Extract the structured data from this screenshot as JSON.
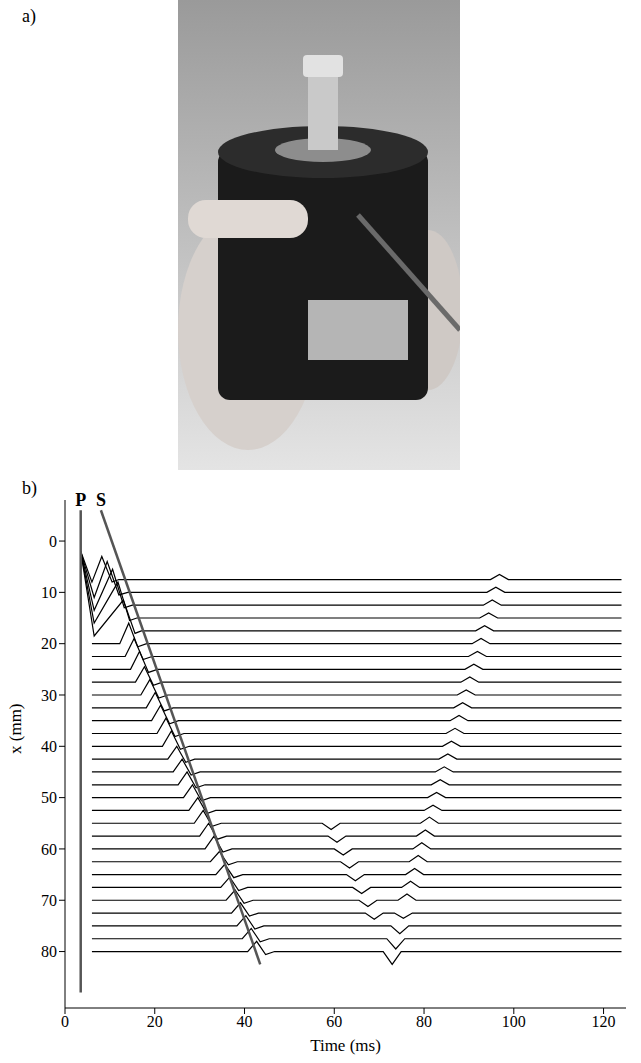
{
  "panel_labels": [
    "a)",
    "b)"
  ],
  "chart_data": {
    "type": "line",
    "x_label": "Time (ms)",
    "y_label": "x (mm)",
    "xlim": [
      0,
      125
    ],
    "xticks": [
      0,
      20,
      40,
      60,
      80,
      100,
      120
    ],
    "ylim": [
      -8,
      91
    ],
    "yticks": [
      0,
      10,
      20,
      30,
      40,
      50,
      60,
      70,
      80
    ],
    "y_reversed": true,
    "grid": false,
    "color": "#000000",
    "traces": [
      {
        "offset": 7.5,
        "x": [
          3.5,
          6,
          8.2,
          10.5,
          12,
          94.8,
          96.8,
          98.8,
          124
        ],
        "values": [
          -5.5,
          0.5,
          -4.5,
          0.5,
          0,
          0,
          -1,
          0,
          0
        ]
      },
      {
        "offset": 10,
        "x": [
          3.5,
          6.5,
          9.4,
          12,
          14,
          94,
          96,
          98,
          124
        ],
        "values": [
          -8,
          1,
          -6,
          0.5,
          0,
          0,
          -1,
          0,
          0
        ]
      },
      {
        "offset": 12.5,
        "x": [
          3.5,
          6.5,
          10.6,
          13.2,
          15,
          93.2,
          95.2,
          97.2,
          124
        ],
        "values": [
          -10.5,
          1,
          -7,
          0.5,
          0,
          0,
          -1,
          0,
          0
        ]
      },
      {
        "offset": 15,
        "x": [
          3.5,
          6.5,
          11.8,
          14.4,
          16,
          92.4,
          94.4,
          96.4,
          124
        ],
        "values": [
          -13,
          1,
          -7,
          0.5,
          0,
          0,
          -1,
          0,
          0
        ]
      },
      {
        "offset": 17.5,
        "x": [
          3.5,
          6.5,
          13,
          15.6,
          17,
          91.5,
          93.5,
          95.5,
          124
        ],
        "values": [
          -15.5,
          1,
          -6,
          0.5,
          0,
          0,
          -1,
          0,
          0
        ]
      },
      {
        "offset": 20,
        "x": [
          6,
          12.2,
          14.2,
          16.2,
          18.2,
          90.7,
          92.7,
          94.7,
          124
        ],
        "values": [
          0,
          0,
          -4,
          0.6,
          0,
          0,
          -1,
          0,
          0
        ]
      },
      {
        "offset": 22.5,
        "x": [
          6,
          13.4,
          15.4,
          17.4,
          19.4,
          89.9,
          91.9,
          93.9,
          124
        ],
        "values": [
          0,
          0,
          -3.5,
          0.6,
          0,
          0,
          -1,
          0,
          0
        ]
      },
      {
        "offset": 25,
        "x": [
          6,
          14.6,
          16.6,
          18.6,
          20.6,
          89.1,
          91.1,
          93.1,
          124
        ],
        "values": [
          0,
          0,
          -3.5,
          0.6,
          0,
          0,
          -1,
          0,
          0
        ]
      },
      {
        "offset": 27.5,
        "x": [
          6,
          15.7,
          17.7,
          19.7,
          21.7,
          88.2,
          90.2,
          92.2,
          124
        ],
        "values": [
          0,
          0,
          -3,
          0.6,
          0,
          0,
          -1,
          0,
          0
        ]
      },
      {
        "offset": 30,
        "x": [
          6,
          16.9,
          18.9,
          20.9,
          22.9,
          87.4,
          89.4,
          91.4,
          124
        ],
        "values": [
          0,
          0,
          -3,
          0.6,
          0,
          0,
          -1,
          0,
          0
        ]
      },
      {
        "offset": 32.5,
        "x": [
          6,
          18.1,
          20.1,
          22.1,
          24.1,
          86.6,
          88.6,
          90.6,
          124
        ],
        "values": [
          0,
          0,
          -3,
          0.6,
          0,
          0,
          -1,
          0,
          0
        ]
      },
      {
        "offset": 35,
        "x": [
          6,
          19.3,
          21.3,
          23.3,
          25.3,
          85.8,
          87.8,
          89.8,
          124
        ],
        "values": [
          0,
          0,
          -3,
          0.6,
          0,
          0,
          -1,
          0,
          0
        ]
      },
      {
        "offset": 37.5,
        "x": [
          6,
          20.5,
          22.5,
          24.5,
          26.5,
          84.9,
          86.9,
          88.9,
          124
        ],
        "values": [
          0,
          0,
          -3,
          0.6,
          0,
          0,
          -1,
          0,
          0
        ]
      },
      {
        "offset": 40,
        "x": [
          6,
          21.7,
          23.7,
          25.7,
          27.7,
          84.1,
          86.1,
          88.1,
          124
        ],
        "values": [
          0,
          0,
          -3,
          0.6,
          0,
          0,
          -1,
          0,
          0
        ]
      },
      {
        "offset": 42.5,
        "x": [
          6,
          22.9,
          24.9,
          26.9,
          28.9,
          83.3,
          85.3,
          87.3,
          124
        ],
        "values": [
          0,
          0,
          -2.5,
          0.6,
          0,
          0,
          -1,
          0,
          0
        ]
      },
      {
        "offset": 45,
        "x": [
          6,
          24.1,
          26.1,
          28.1,
          30.1,
          82.5,
          84.5,
          86.5,
          124
        ],
        "values": [
          0,
          0,
          -2.5,
          0.6,
          0,
          0,
          -1,
          0,
          0
        ]
      },
      {
        "offset": 47.5,
        "x": [
          6,
          25.2,
          27.2,
          29.2,
          31.2,
          81.6,
          83.6,
          85.6,
          124
        ],
        "values": [
          0,
          0,
          -2.5,
          0.6,
          0,
          0,
          -1,
          0,
          0
        ]
      },
      {
        "offset": 50,
        "x": [
          6,
          26.4,
          28.4,
          30.4,
          32.4,
          80.8,
          82.8,
          84.8,
          124
        ],
        "values": [
          0,
          0,
          -2.5,
          0.6,
          0,
          0,
          -1,
          0,
          0
        ]
      },
      {
        "offset": 52.5,
        "x": [
          6,
          27.6,
          29.6,
          31.6,
          33.6,
          80,
          82,
          84,
          124
        ],
        "values": [
          0,
          0,
          -2.5,
          0.6,
          0,
          0,
          -1,
          0,
          0
        ]
      },
      {
        "offset": 55,
        "x": [
          6,
          28.8,
          30.8,
          32.8,
          34.8,
          57.3,
          59.3,
          61.3,
          79.2,
          81.2,
          83.2,
          124
        ],
        "values": [
          0,
          0,
          -2.5,
          0.6,
          0,
          0,
          1.2,
          0,
          0,
          -1.2,
          0,
          0
        ]
      },
      {
        "offset": 57.5,
        "x": [
          6,
          30,
          32,
          34,
          36,
          58.6,
          60.6,
          62.6,
          78.3,
          80.3,
          82.3,
          124
        ],
        "values": [
          0,
          0,
          -2.5,
          0.6,
          0,
          0,
          1.2,
          0,
          0,
          -1.2,
          0,
          0
        ]
      },
      {
        "offset": 60,
        "x": [
          6,
          31.2,
          33.2,
          35.2,
          37.2,
          60,
          62,
          64,
          77.5,
          79.5,
          81.5,
          124
        ],
        "values": [
          0,
          0,
          -2.5,
          0.6,
          0,
          0,
          1.2,
          0,
          0,
          -1.2,
          0,
          0
        ]
      },
      {
        "offset": 62.5,
        "x": [
          6,
          32.4,
          34.4,
          36.4,
          38.4,
          61.4,
          63.4,
          65.4,
          76.7,
          78.7,
          80.7,
          124
        ],
        "values": [
          0,
          0,
          -2,
          0.6,
          0,
          0,
          1.2,
          0,
          0,
          -1.2,
          0,
          0
        ]
      },
      {
        "offset": 65,
        "x": [
          6,
          33.6,
          35.6,
          37.6,
          39.6,
          62.7,
          64.7,
          66.7,
          75.9,
          77.9,
          79.9,
          124
        ],
        "values": [
          0,
          0,
          -2,
          0.6,
          0,
          0,
          1.2,
          0,
          0,
          -1.2,
          0,
          0
        ]
      },
      {
        "offset": 67.5,
        "x": [
          6,
          34.7,
          36.7,
          38.7,
          40.7,
          64.1,
          66.1,
          68.1,
          75,
          77,
          79,
          124
        ],
        "values": [
          0,
          0,
          -2,
          0.6,
          0,
          0,
          1.2,
          0,
          0,
          -1.2,
          0,
          0
        ]
      },
      {
        "offset": 70,
        "x": [
          6,
          35.9,
          37.9,
          39.9,
          41.9,
          65.5,
          67.5,
          69.5,
          74.2,
          76.2,
          78.2,
          124
        ],
        "values": [
          0,
          0,
          -2,
          0.6,
          0,
          0,
          1.2,
          0,
          0,
          -1.2,
          0,
          0
        ]
      },
      {
        "offset": 72.5,
        "x": [
          6,
          37.1,
          39.1,
          41.1,
          43.1,
          66.9,
          68.9,
          70.9,
          73.4,
          75.4,
          77.4,
          124
        ],
        "values": [
          0,
          0,
          -2,
          0.6,
          0,
          0,
          1.2,
          0,
          0,
          1,
          0,
          0
        ]
      },
      {
        "offset": 75,
        "x": [
          6,
          38.3,
          40.3,
          42.3,
          44.3,
          72.6,
          74.6,
          76.6,
          124
        ],
        "values": [
          0,
          0,
          -2,
          0.6,
          0,
          0,
          1.5,
          0,
          0
        ]
      },
      {
        "offset": 77.5,
        "x": [
          6,
          39.5,
          41.5,
          43.5,
          45.5,
          71.7,
          73.7,
          75.7,
          124
        ],
        "values": [
          0,
          0,
          -2,
          0.6,
          0,
          0,
          2,
          0,
          0
        ]
      },
      {
        "offset": 80,
        "x": [
          6,
          40.7,
          42.7,
          44.7,
          46.7,
          70.9,
          72.9,
          74.9,
          124
        ],
        "values": [
          0,
          0,
          -2,
          0.6,
          0,
          0,
          2.5,
          0,
          0
        ]
      }
    ],
    "annotations": [
      {
        "text": "P",
        "x": [
          3.5,
          3.5
        ],
        "y": [
          -6,
          88
        ],
        "color": "#555555"
      },
      {
        "text": "S",
        "x": [
          8,
          43.5
        ],
        "y": [
          -6,
          82.5
        ],
        "color": "#555555"
      }
    ]
  }
}
